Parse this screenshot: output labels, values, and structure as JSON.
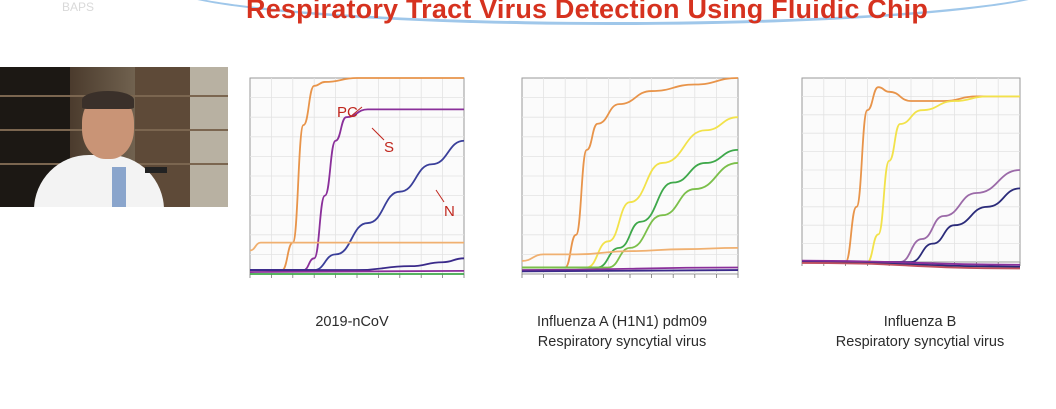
{
  "slide": {
    "title": "Respiratory Tract Virus Detection Using Fluidic Chip",
    "logo_text": "BAPS",
    "colors": {
      "title": "#d6321f",
      "annotation": "#c0271e"
    }
  },
  "captions": {
    "chart1": [
      "2019-nCoV"
    ],
    "chart2": [
      "Influenza A (H1N1) pdm09",
      "Respiratory syncytial virus"
    ],
    "chart3": [
      "Influenza B",
      "Respiratory syncytial virus"
    ]
  },
  "annotations": {
    "pc": "PC",
    "s": "S",
    "n": "N"
  },
  "chart_data": [
    {
      "type": "line",
      "caption": "2019-nCoV",
      "annotations": [
        "PC",
        "S",
        "N"
      ],
      "xlim": [
        0,
        40
      ],
      "ylim": [
        0,
        50
      ],
      "series": [
        {
          "name": "PC",
          "color": "#e8944a",
          "x": [
            0,
            6,
            8,
            10,
            12,
            14,
            20,
            30,
            40
          ],
          "y": [
            1,
            1,
            8,
            38,
            48,
            49,
            50,
            50,
            50
          ]
        },
        {
          "name": "S",
          "color": "#8a2f9a",
          "x": [
            0,
            10,
            12,
            14,
            16,
            18,
            22,
            30,
            40
          ],
          "y": [
            1,
            1,
            4,
            20,
            34,
            40,
            42,
            42,
            42
          ]
        },
        {
          "name": "N",
          "color": "#3a3f9a",
          "x": [
            0,
            12,
            16,
            22,
            28,
            34,
            40
          ],
          "y": [
            1,
            1,
            5,
            13,
            21,
            28,
            34
          ]
        },
        {
          "color": "#f0b070",
          "x": [
            0,
            2,
            10,
            20,
            30,
            40
          ],
          "y": [
            6,
            8,
            8,
            8,
            8,
            8
          ]
        },
        {
          "color": "#3a2a8a",
          "x": [
            0,
            20,
            30,
            36,
            40
          ],
          "y": [
            1,
            1,
            2,
            3,
            4
          ]
        },
        {
          "color": "#3ea84a",
          "x": [
            0,
            40
          ],
          "y": [
            0,
            0
          ]
        },
        {
          "color": "#8a2f9a",
          "x": [
            0,
            40
          ],
          "y": [
            0.5,
            0.8
          ]
        }
      ]
    },
    {
      "type": "line",
      "caption": "Influenza A (H1N1) pdm09 / Respiratory syncytial virus",
      "xlim": [
        0,
        40
      ],
      "ylim": [
        0,
        30
      ],
      "series": [
        {
          "color": "#e8944a",
          "x": [
            0,
            8,
            10,
            12,
            14,
            18,
            24,
            32,
            40
          ],
          "y": [
            1,
            1,
            6,
            19,
            23,
            26,
            28,
            29,
            30
          ]
        },
        {
          "color": "#f2e24a",
          "x": [
            0,
            12,
            16,
            20,
            26,
            34,
            40
          ],
          "y": [
            1,
            1,
            5,
            11,
            17,
            22,
            24
          ]
        },
        {
          "color": "#3ea84a",
          "x": [
            0,
            14,
            18,
            22,
            28,
            34,
            40
          ],
          "y": [
            1,
            1,
            4,
            8,
            14,
            17,
            19
          ]
        },
        {
          "color": "#7bbf4a",
          "x": [
            0,
            16,
            20,
            26,
            32,
            40
          ],
          "y": [
            1,
            1,
            4,
            9,
            13,
            17
          ]
        },
        {
          "color": "#f0b070",
          "x": [
            0,
            4,
            10,
            20,
            30,
            40
          ],
          "y": [
            2,
            3,
            3,
            3.5,
            3.8,
            4
          ]
        },
        {
          "color": "#8a2f9a",
          "x": [
            0,
            40
          ],
          "y": [
            0.6,
            1
          ]
        },
        {
          "color": "#3a2a8a",
          "x": [
            0,
            40
          ],
          "y": [
            0.4,
            0.6
          ]
        }
      ]
    },
    {
      "type": "line",
      "caption": "Influenza B / Respiratory syncytial virus",
      "xlim": [
        0,
        40
      ],
      "ylim": [
        0,
        40
      ],
      "series": [
        {
          "color": "#e8944a",
          "x": [
            0,
            8,
            10,
            12,
            14,
            16,
            20,
            26,
            32,
            40
          ],
          "y": [
            0,
            0,
            12,
            33,
            38,
            37,
            35,
            35,
            36,
            36
          ]
        },
        {
          "color": "#f2e24a",
          "x": [
            0,
            12,
            14,
            16,
            18,
            22,
            28,
            34,
            40
          ],
          "y": [
            0,
            0,
            6,
            22,
            30,
            33,
            35,
            36,
            36
          ]
        },
        {
          "color": "#9b6aa8",
          "x": [
            0,
            18,
            22,
            26,
            32,
            40
          ],
          "y": [
            0,
            0,
            5,
            10,
            15,
            20
          ]
        },
        {
          "color": "#2b2b7a",
          "x": [
            0,
            20,
            24,
            28,
            34,
            40
          ],
          "y": [
            0,
            0,
            4,
            8,
            12,
            16
          ]
        },
        {
          "color": "#2b2b7a",
          "x": [
            0,
            40
          ],
          "y": [
            0,
            -1
          ]
        },
        {
          "color": "#8a2f9a",
          "x": [
            0,
            40
          ],
          "y": [
            0.3,
            -0.6
          ]
        },
        {
          "color": "#c05060",
          "x": [
            0,
            40
          ],
          "y": [
            -0.2,
            -1.4
          ]
        }
      ]
    }
  ]
}
